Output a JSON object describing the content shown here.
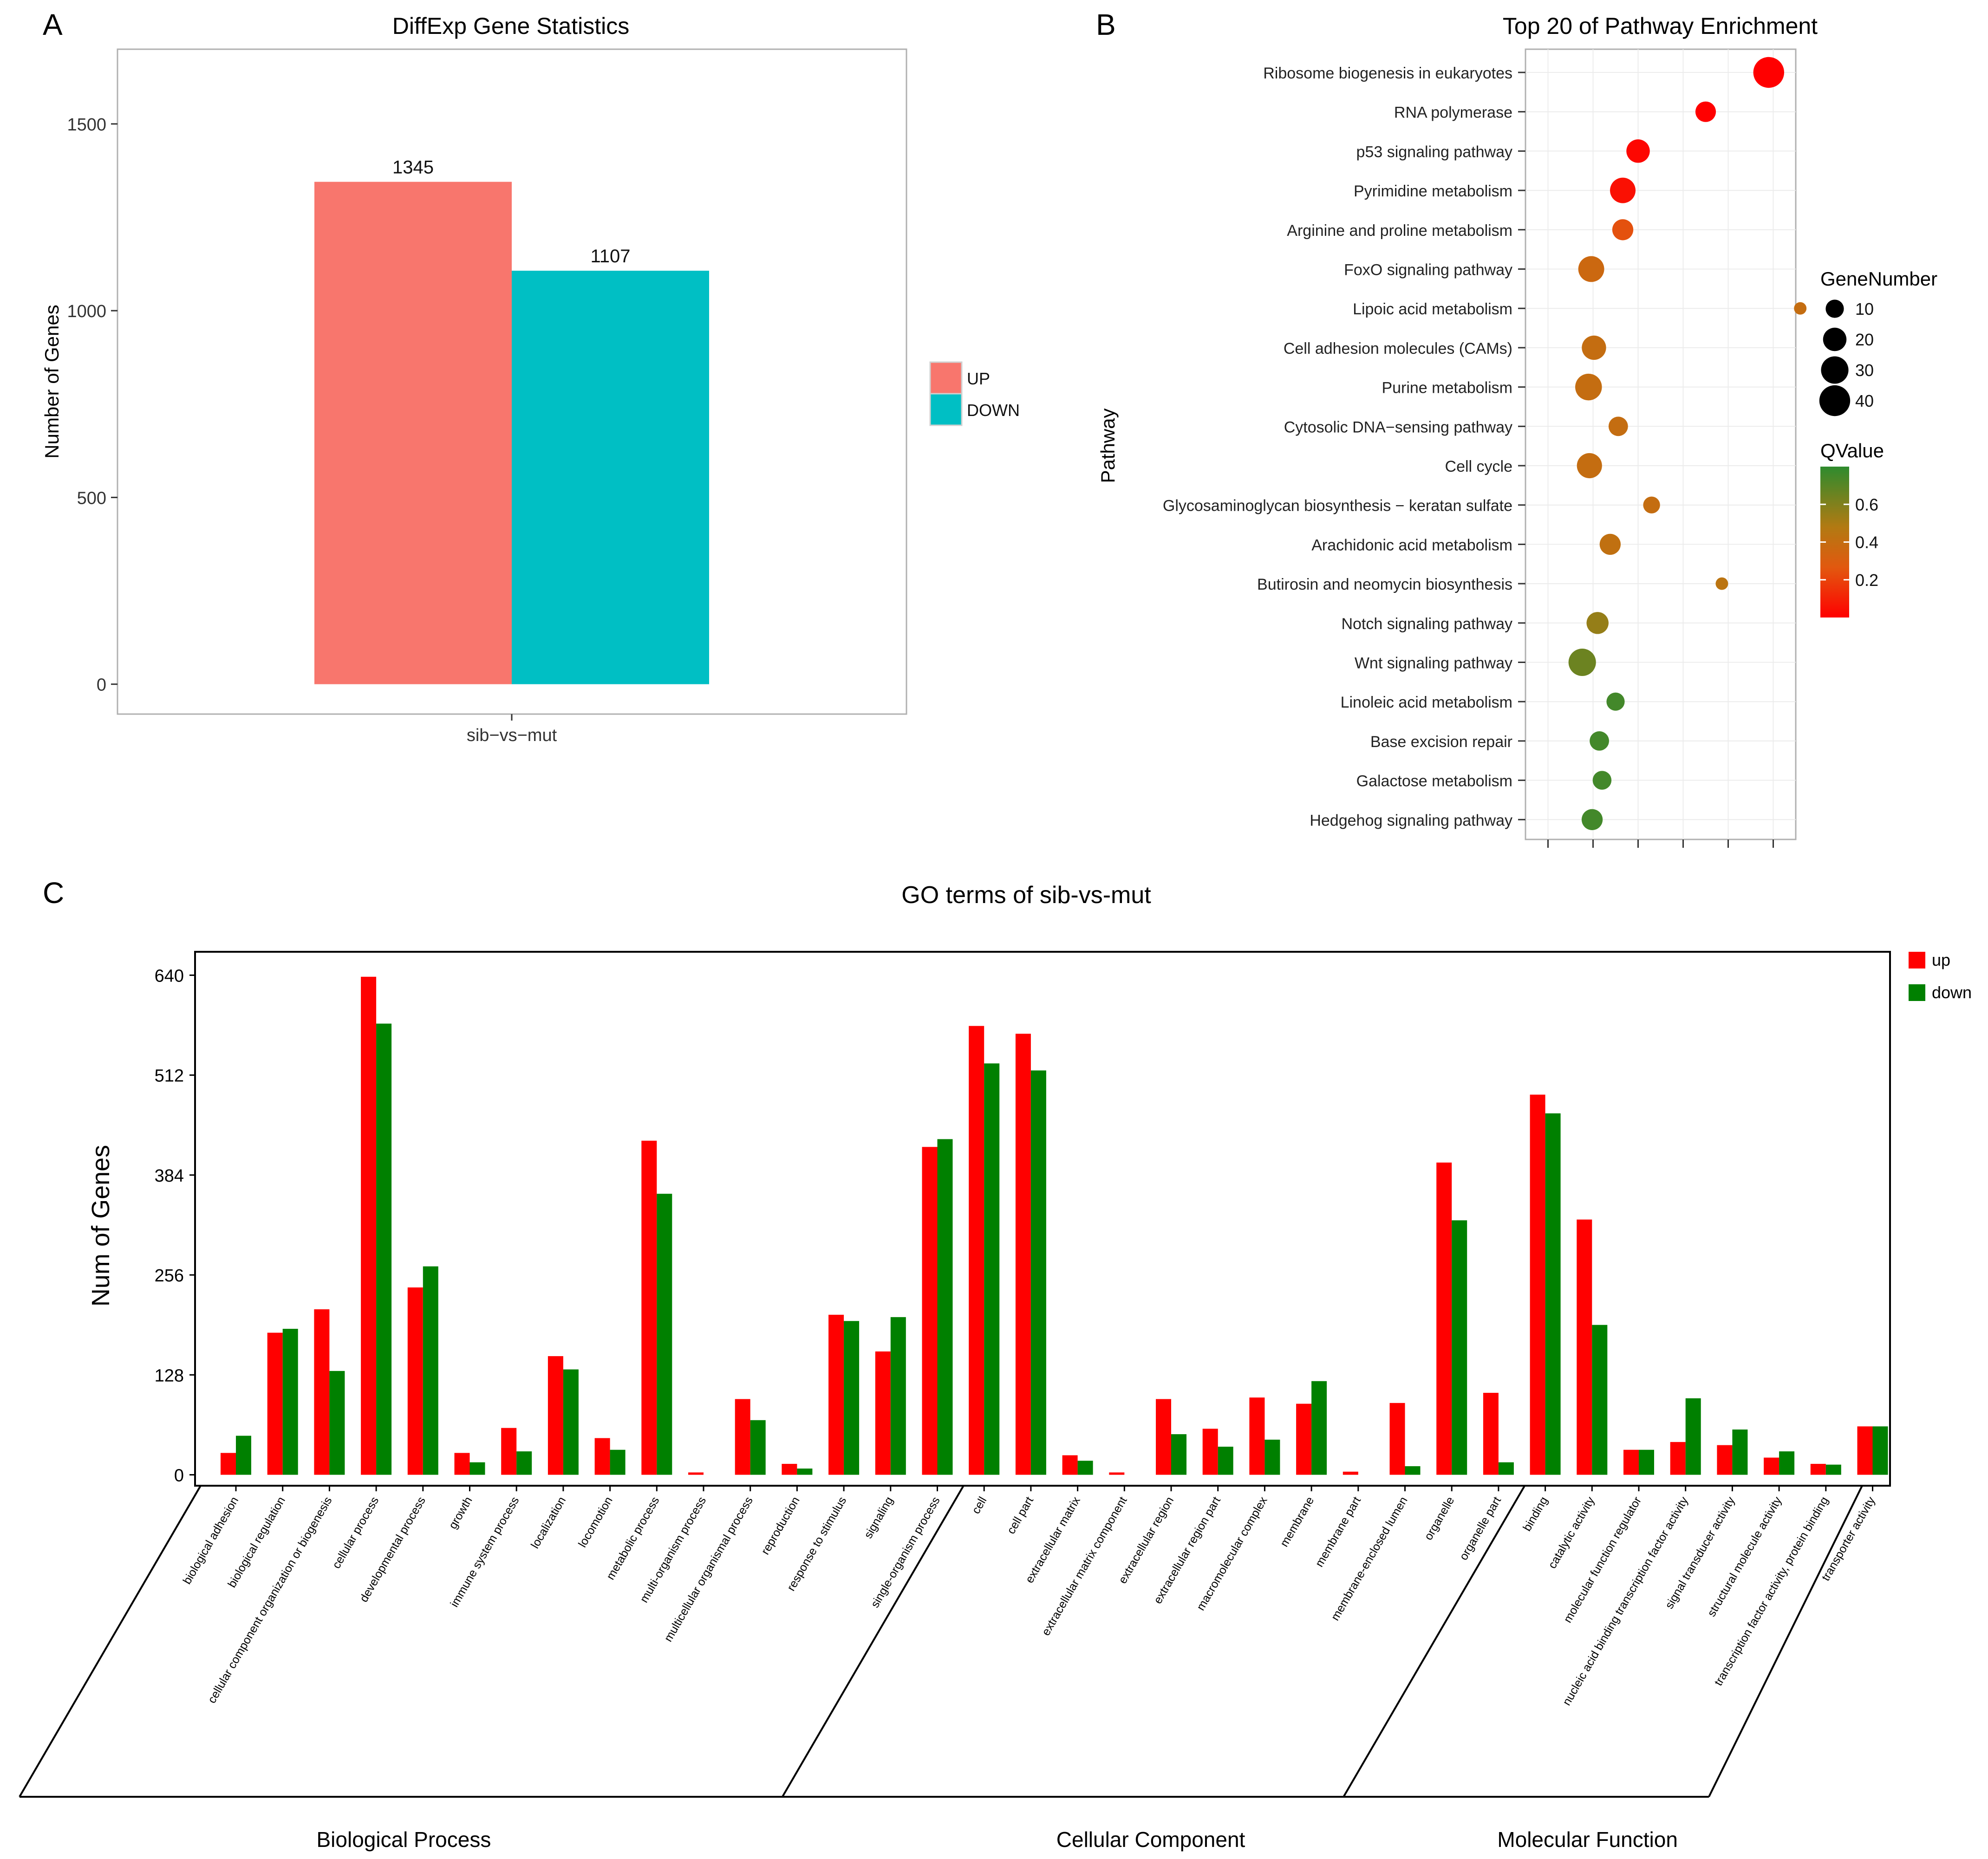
{
  "panels": {
    "a": {
      "letter": "A"
    },
    "b": {
      "letter": "B"
    },
    "c": {
      "letter": "C"
    }
  },
  "chart_data": [
    {
      "type": "bar",
      "title": "DiffExp Gene Statistics",
      "xlabel": "",
      "ylabel": "Number of Genes",
      "categories": [
        "sib−vs−mut"
      ],
      "series": [
        {
          "name": "UP",
          "color": "#F8766D",
          "values": [
            1345
          ],
          "label": "1345"
        },
        {
          "name": "DOWN",
          "color": "#00BFC4",
          "values": [
            1107
          ],
          "label": "1107"
        }
      ],
      "yticks": [
        "0",
        "500",
        "1000",
        "1500"
      ],
      "yticks_values": [
        0,
        500,
        1000,
        1500
      ],
      "ylim": [
        -80,
        1700
      ],
      "legend": "right",
      "grid": false
    },
    {
      "type": "scatter",
      "title": "Top 20 of Pathway Enrichment",
      "ylabel": "Pathway",
      "xlabel": "",
      "x_axis_note": "x = rich factor, estimated (tick labels not shown in the image)",
      "xlim": [
        0.0,
        0.3
      ],
      "xticks_values": [
        0.025,
        0.075,
        0.125,
        0.175,
        0.225,
        0.275
      ],
      "points": [
        {
          "pathway": "Ribosome biogenesis in eukaryotes",
          "x": 0.27,
          "genes": 40,
          "q": 0.0
        },
        {
          "pathway": "RNA polymerase",
          "x": 0.2,
          "genes": 14,
          "q": 0.0
        },
        {
          "pathway": "p53 signaling pathway",
          "x": 0.125,
          "genes": 20,
          "q": 0.02
        },
        {
          "pathway": "Pyrimidine metabolism",
          "x": 0.108,
          "genes": 25,
          "q": 0.05
        },
        {
          "pathway": "Arginine and proline metabolism",
          "x": 0.108,
          "genes": 15,
          "q": 0.25
        },
        {
          "pathway": "FoxO signaling pathway",
          "x": 0.073,
          "genes": 26,
          "q": 0.37
        },
        {
          "pathway": "Lipoic acid metabolism",
          "x": 0.305,
          "genes": 3,
          "q": 0.4
        },
        {
          "pathway": "Cell adhesion molecules (CAMs)",
          "x": 0.076,
          "genes": 22,
          "q": 0.4
        },
        {
          "pathway": "Purine metabolism",
          "x": 0.07,
          "genes": 28,
          "q": 0.4
        },
        {
          "pathway": "Cytosolic DNA−sensing pathway",
          "x": 0.103,
          "genes": 12,
          "q": 0.4
        },
        {
          "pathway": "Cell cycle",
          "x": 0.071,
          "genes": 24,
          "q": 0.4
        },
        {
          "pathway": "Glycosaminoglycan biosynthesis − keratan sulfate",
          "x": 0.14,
          "genes": 8,
          "q": 0.4
        },
        {
          "pathway": "Arachidonic acid metabolism",
          "x": 0.094,
          "genes": 15,
          "q": 0.42
        },
        {
          "pathway": "Butirosin and neomycin biosynthesis",
          "x": 0.218,
          "genes": 3,
          "q": 0.44
        },
        {
          "pathway": "Notch signaling pathway",
          "x": 0.08,
          "genes": 17,
          "q": 0.55
        },
        {
          "pathway": "Wnt signaling pathway",
          "x": 0.063,
          "genes": 30,
          "q": 0.65
        },
        {
          "pathway": "Linoleic acid metabolism",
          "x": 0.1,
          "genes": 10,
          "q": 0.75
        },
        {
          "pathway": "Base excision repair",
          "x": 0.082,
          "genes": 12,
          "q": 0.75
        },
        {
          "pathway": "Galactose metabolism",
          "x": 0.085,
          "genes": 11,
          "q": 0.75
        },
        {
          "pathway": "Hedgehog signaling pathway",
          "x": 0.074,
          "genes": 15,
          "q": 0.75
        }
      ],
      "size_legend": {
        "title": "GeneNumber",
        "values": [
          10,
          20,
          30,
          40
        ],
        "labels": [
          "10",
          "20",
          "30",
          "40"
        ]
      },
      "color_legend": {
        "title": "QValue",
        "range": [
          0.0,
          0.8
        ],
        "colors": [
          "#FF0000",
          "#E2580F",
          "#B27A12",
          "#2E8B2E"
        ],
        "ticks": [
          0.2,
          0.4,
          0.6
        ],
        "tick_labels": [
          "0.2",
          "0.4",
          "0.6"
        ]
      },
      "grid": true
    },
    {
      "type": "bar",
      "title": "GO terms of sib-vs-mut",
      "ylabel": "Num of Genes",
      "xlabel": "",
      "ylim": [
        -14,
        670
      ],
      "yticks_values": [
        0,
        128,
        256,
        384,
        512,
        640
      ],
      "yticks": [
        "0",
        "128",
        "256",
        "384",
        "512",
        "640"
      ],
      "categories": [
        "biological adhesion",
        "biological regulation",
        "cellular component organization or biogenesis",
        "cellular process",
        "developmental process",
        "growth",
        "immune system process",
        "localization",
        "locomotion",
        "metabolic process",
        "multi-organism process",
        "multicellular organismal process",
        "reproduction",
        "response to stimulus",
        "signaling",
        "single-organism process",
        "cell",
        "cell part",
        "extracellular matrix",
        "extracellular matrix component",
        "extracellular region",
        "extracellular region part",
        "macromolecular complex",
        "membrane",
        "membrane part",
        "membrane-enclosed lumen",
        "organelle",
        "organelle part",
        "binding",
        "catalytic activity",
        "molecular function regulator",
        "nucleic acid binding transcription factor activity",
        "signal transducer activity",
        "structural molecule activity",
        "transcription factor activity, protein binding",
        "transporter activity"
      ],
      "series": [
        {
          "name": "up",
          "color": "#FF0000",
          "values": [
            28,
            182,
            212,
            638,
            240,
            28,
            60,
            152,
            47,
            428,
            3,
            97,
            14,
            205,
            158,
            420,
            575,
            565,
            25,
            3,
            97,
            59,
            99,
            91,
            4,
            92,
            400,
            105,
            487,
            327,
            32,
            42,
            38,
            22,
            14,
            62
          ]
        },
        {
          "name": "down",
          "color": "#008000",
          "values": [
            50,
            187,
            133,
            578,
            267,
            16,
            30,
            135,
            32,
            360,
            0,
            70,
            8,
            197,
            202,
            430,
            527,
            518,
            18,
            0,
            52,
            36,
            45,
            120,
            0,
            11,
            326,
            16,
            463,
            192,
            32,
            98,
            58,
            30,
            13,
            62
          ]
        }
      ],
      "groups": [
        {
          "name": "Biological Process",
          "from": 0,
          "to": 15
        },
        {
          "name": "Cellular Component",
          "from": 16,
          "to": 27
        },
        {
          "name": "Molecular Function",
          "from": 28,
          "to": 35
        }
      ],
      "legend": "top-right",
      "grid": false
    }
  ]
}
